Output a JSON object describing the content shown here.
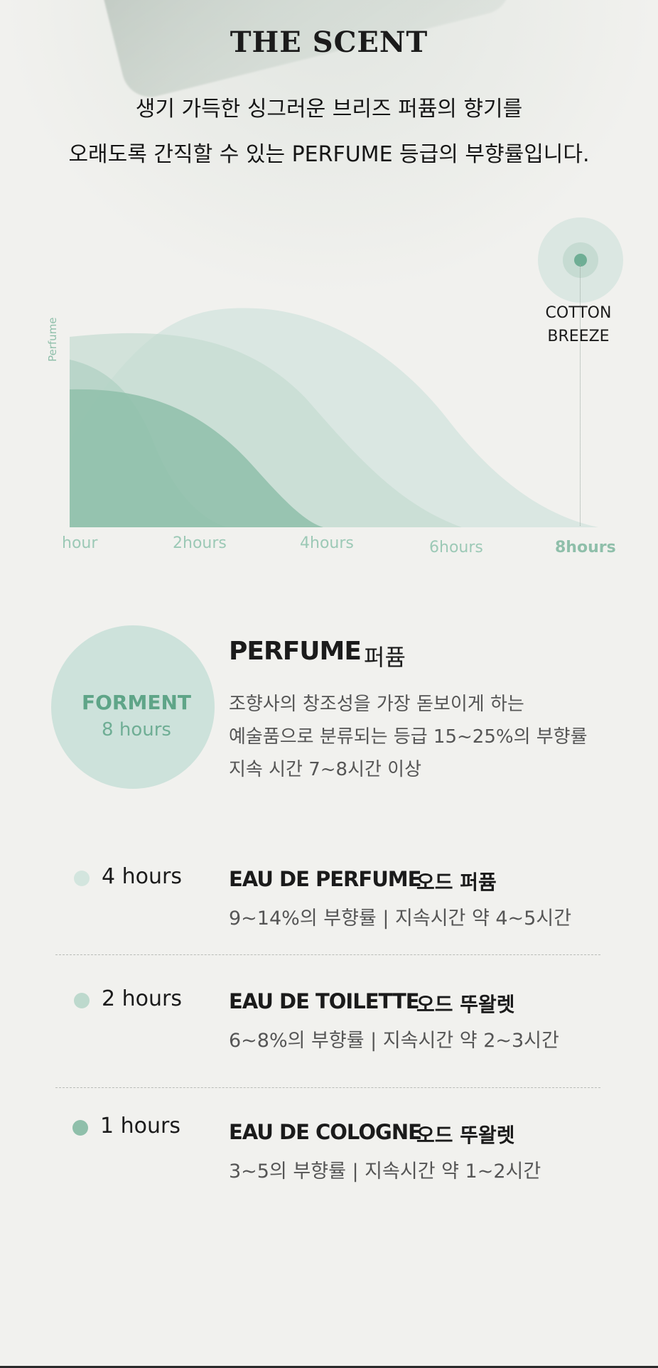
{
  "header": {
    "title": "THE SCENT",
    "subtitle_line1": "생기 가득한 싱그러운 브리즈 퍼퓸의 향기를",
    "subtitle_line2": "오래도록 간직할 수 있는 PERFUME 등급의 부향률입니다."
  },
  "chart_data": {
    "type": "area",
    "ylabel": "Perfume",
    "categories": [
      "hour",
      "2hours",
      "4hours",
      "6hours",
      "8hours"
    ],
    "highlight": "8hours",
    "annotation": "COTTON BREEZE",
    "annotation_line1": "COTTON",
    "annotation_line2": "BREEZE",
    "colors": [
      "#dbe7e2",
      "#cde2db",
      "#bcd8cc",
      "#8fbfaa"
    ],
    "grid": false,
    "legend": "none"
  },
  "perfume": {
    "circle_name": "FORMENT",
    "circle_hours": "8 hours",
    "title_en": "PERFUME",
    "title_kr": "퍼퓸",
    "desc_lines": [
      "조향사의 창조성을 가장 돋보이게 하는",
      "예술품으로 분류되는 등급 15~25%의 부향률",
      "지속 시간 7~8시간 이상"
    ]
  },
  "rows": [
    {
      "hours": "4 hours",
      "name_en": "EAU DE PERFUME",
      "name_kr": "오드 퍼퓸",
      "desc": "9~14%의 부향률 | 지속시간 약 4~5시간",
      "dot_color": "#d3e5de"
    },
    {
      "hours": "2 hours",
      "name_en": "EAU DE TOILETTE",
      "name_kr": "오드 뚜왈렛",
      "desc": "6~8%의 부향률 | 지속시간 약 2~3시간",
      "dot_color": "#bdd9cd"
    },
    {
      "hours": "1 hours",
      "name_en": "EAU DE COLOGNE",
      "name_kr": "오드 뚜왈렛",
      "desc": "3~5의 부향률 | 지속시간 약 1~2시간",
      "dot_color": "#8fbfaa"
    }
  ]
}
